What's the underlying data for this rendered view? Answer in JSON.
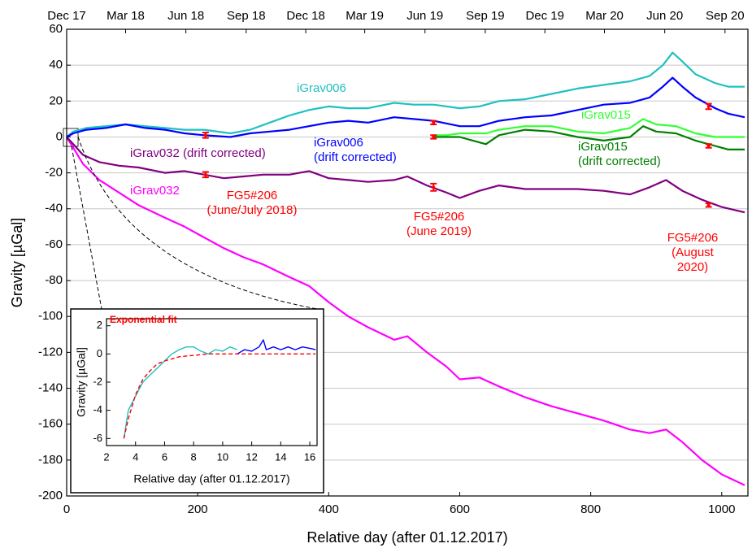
{
  "chart_data": [
    {
      "type": "line",
      "x_label": "Relative day (after 01.12.2017)",
      "y_label": "Gravity [µGal]",
      "xlim": [
        0,
        1040
      ],
      "ylim": [
        -200,
        60
      ],
      "xticks": [
        0,
        200,
        400,
        600,
        800,
        1000
      ],
      "yticks": [
        -200,
        -180,
        -160,
        -140,
        -120,
        -100,
        -80,
        -60,
        -40,
        -20,
        0,
        20,
        40,
        60
      ],
      "x2ticks": [
        {
          "value": 0,
          "label": "Dec 17"
        },
        {
          "value": 90,
          "label": "Mar 18"
        },
        {
          "value": 182,
          "label": "Jun 18"
        },
        {
          "value": 274,
          "label": "Sep 18"
        },
        {
          "value": 365,
          "label": "Dec 18"
        },
        {
          "value": 455,
          "label": "Mar 19"
        },
        {
          "value": 547,
          "label": "Jun 19"
        },
        {
          "value": 639,
          "label": "Sep 19"
        },
        {
          "value": 730,
          "label": "Dec 19"
        },
        {
          "value": 821,
          "label": "Mar 20"
        },
        {
          "value": 913,
          "label": "Jun 20"
        },
        {
          "value": 1005,
          "label": "Sep 20"
        }
      ],
      "grid": true,
      "series": [
        {
          "name": "iGrav032",
          "color": "#ff00ff",
          "x": [
            0,
            10,
            25,
            50,
            80,
            110,
            150,
            180,
            210,
            240,
            270,
            300,
            340,
            370,
            400,
            430,
            460,
            500,
            520,
            550,
            580,
            600,
            630,
            660,
            700,
            740,
            780,
            820,
            860,
            890,
            915,
            940,
            970,
            1000,
            1035
          ],
          "values": [
            0,
            -6,
            -15,
            -24,
            -31,
            -38,
            -45,
            -50,
            -56,
            -62,
            -67,
            -71,
            -78,
            -83,
            -92,
            -100,
            -106,
            -113,
            -111,
            -120,
            -128,
            -135,
            -134,
            -139,
            -145,
            -150,
            -154,
            -158,
            -163,
            -165,
            -163,
            -170,
            -180,
            -188,
            -194
          ]
        },
        {
          "name": "iGrav032 (drift corrected)",
          "color": "#800080",
          "x": [
            0,
            10,
            25,
            50,
            80,
            110,
            150,
            180,
            210,
            240,
            270,
            300,
            340,
            370,
            400,
            430,
            460,
            500,
            520,
            550,
            580,
            600,
            630,
            660,
            700,
            740,
            780,
            820,
            860,
            890,
            915,
            940,
            970,
            1000,
            1035
          ],
          "values": [
            0,
            -4,
            -10,
            -14,
            -16,
            -17,
            -20,
            -19,
            -21,
            -23,
            -22,
            -21,
            -21,
            -19,
            -23,
            -24,
            -25,
            -24,
            -22,
            -27,
            -31,
            -34,
            -30,
            -27,
            -29,
            -29,
            -29,
            -30,
            -32,
            -28,
            -24,
            -30,
            -35,
            -39,
            -42
          ]
        },
        {
          "name": "iGrav006",
          "color": "#20c0c0",
          "x": [
            0,
            10,
            30,
            60,
            90,
            120,
            150,
            180,
            210,
            250,
            280,
            310,
            340,
            370,
            400,
            430,
            460,
            500,
            530,
            560,
            600,
            630,
            660,
            700,
            740,
            780,
            820,
            860,
            890,
            910,
            925,
            940,
            960,
            990,
            1010,
            1035
          ],
          "values": [
            0,
            3,
            5,
            6,
            7,
            6,
            5,
            4,
            4,
            2,
            4,
            8,
            12,
            15,
            17,
            16,
            16,
            19,
            18,
            18,
            16,
            17,
            20,
            21,
            24,
            27,
            29,
            31,
            34,
            40,
            47,
            42,
            35,
            30,
            28,
            28
          ]
        },
        {
          "name": "iGrav006\n(drift corrected)",
          "color": "#0000ff",
          "x": [
            0,
            10,
            30,
            60,
            90,
            120,
            150,
            180,
            210,
            250,
            280,
            310,
            340,
            370,
            400,
            430,
            460,
            500,
            530,
            560,
            600,
            630,
            660,
            700,
            740,
            780,
            820,
            860,
            890,
            910,
            925,
            940,
            960,
            990,
            1010,
            1035
          ],
          "values": [
            0,
            2,
            4,
            5,
            7,
            5,
            4,
            2,
            1,
            0,
            2,
            3,
            4,
            6,
            8,
            9,
            8,
            11,
            10,
            9,
            6,
            6,
            9,
            11,
            12,
            15,
            18,
            19,
            22,
            28,
            33,
            28,
            22,
            16,
            13,
            11
          ]
        },
        {
          "name": "iGrav015",
          "color": "#33ff33",
          "x": [
            560,
            580,
            600,
            620,
            640,
            660,
            700,
            740,
            780,
            820,
            860,
            880,
            900,
            930,
            960,
            990,
            1010,
            1035
          ],
          "values": [
            1,
            1,
            2,
            2,
            2,
            4,
            6,
            6,
            3,
            2,
            5,
            10,
            7,
            6,
            2,
            0,
            0,
            0
          ]
        },
        {
          "name": "iGrav015\n(drift corrected)",
          "color": "#008000",
          "x": [
            560,
            580,
            600,
            620,
            640,
            660,
            700,
            740,
            780,
            820,
            860,
            880,
            900,
            930,
            960,
            990,
            1010,
            1035
          ],
          "values": [
            0,
            0,
            0,
            -2,
            -4,
            1,
            4,
            3,
            0,
            -2,
            0,
            6,
            3,
            2,
            -2,
            -5,
            -7,
            -7
          ]
        }
      ],
      "fg5": {
        "color": "#ff0000",
        "x": [
          212,
          212,
          560,
          560,
          560,
          980,
          980,
          980
        ],
        "values": [
          1,
          -21,
          8,
          0,
          -28,
          17,
          -5,
          -38
        ],
        "errors": [
          1.5,
          1.5,
          1,
          1,
          2,
          1.5,
          1,
          1
        ]
      },
      "annotations": [
        "FG5#206\n(June/July 2018)",
        "FG5#206\n(June 2019)",
        "FG5#206\n(August 2020)"
      ],
      "annotation_color": "#ff0000"
    },
    {
      "type": "line",
      "title": "Exponential fit",
      "title_color": "#ff0000",
      "x_label": "Relative day (after 01.12.2017)",
      "y_label": "Gravity [µGal]",
      "xlim": [
        2,
        16.5
      ],
      "ylim": [
        -6.5,
        2.5
      ],
      "xticks": [
        2,
        4,
        6,
        8,
        10,
        12,
        14,
        16
      ],
      "yticks": [
        -6,
        -4,
        -2,
        0,
        2
      ],
      "grid": false,
      "series": [
        {
          "color": "#20c0c0",
          "x": [
            3.2,
            3.5,
            4,
            4.5,
            5,
            5.5,
            6,
            6.5,
            7,
            7.5,
            8,
            8.5,
            9,
            9.5,
            10,
            10.5,
            11
          ],
          "values": [
            -6,
            -4,
            -3,
            -2,
            -1.5,
            -1,
            -0.5,
            0,
            0.3,
            0.5,
            0.5,
            0.2,
            0,
            0.3,
            0.2,
            0.5,
            0.3
          ]
        },
        {
          "color": "#0000ff",
          "x": [
            11,
            11.5,
            12,
            12.5,
            12.8,
            13,
            13.5,
            14,
            14.5,
            15,
            15.5,
            16,
            16.4
          ],
          "values": [
            0,
            0.3,
            0.2,
            0.5,
            1,
            0.3,
            0.5,
            0.3,
            0.5,
            0.3,
            0.5,
            0.4,
            0.3
          ]
        },
        {
          "color": "#ff0000",
          "line_style": "dashed",
          "x": [
            3.2,
            3.5,
            4,
            4.5,
            5,
            5.5,
            6,
            7,
            8,
            9,
            10,
            11,
            12,
            13,
            14,
            15,
            16.4
          ],
          "values": [
            -6,
            -4.6,
            -2.9,
            -1.8,
            -1.2,
            -0.7,
            -0.5,
            -0.2,
            -0.1,
            0,
            0,
            0,
            0,
            0,
            0,
            0,
            0
          ]
        }
      ]
    }
  ]
}
